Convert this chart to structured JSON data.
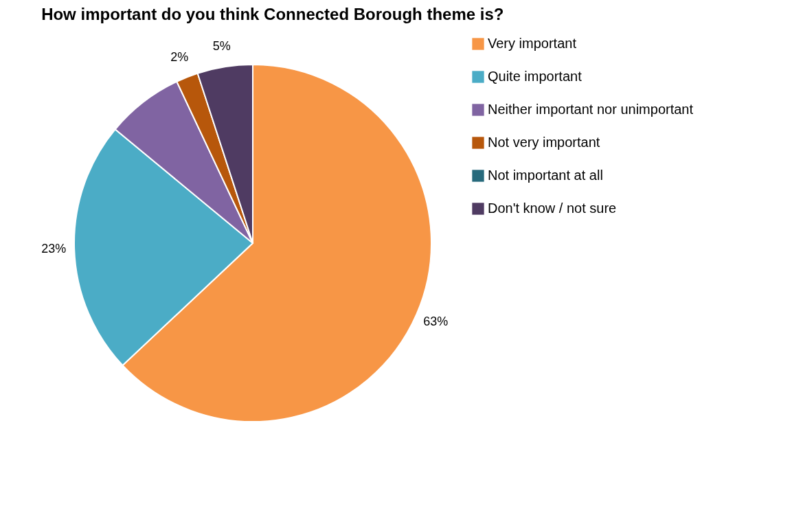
{
  "chart_data": {
    "type": "pie",
    "title": "How important do you think Connected Borough theme is?",
    "categories": [
      "Very important",
      "Quite important",
      "Neither important nor unimportant",
      "Not very important",
      "Not important at all",
      "Don't know / not sure"
    ],
    "values": [
      63,
      23,
      7,
      2,
      0,
      5
    ],
    "colors": [
      "#f79646",
      "#4bacc6",
      "#8064a2",
      "#b7570b",
      "#276a7c",
      "#4f3b62"
    ],
    "value_labels": [
      "63%",
      "23%",
      null,
      "2%",
      null,
      "5%"
    ],
    "legend": "right"
  }
}
